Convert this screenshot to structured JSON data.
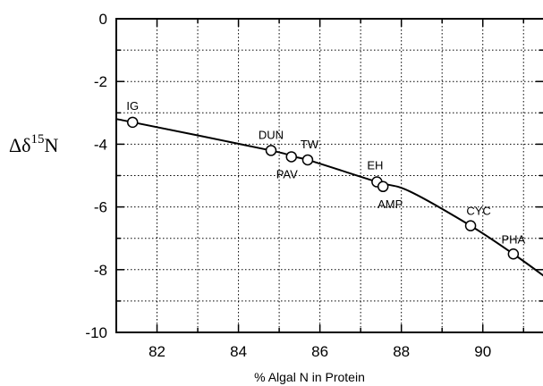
{
  "chart_data": {
    "type": "scatter",
    "xlabel": "% Algal N in Protein",
    "ylabel": {
      "prefix": "Δδ",
      "superscript": "15",
      "suffix": "N"
    },
    "xlim": [
      81,
      91.5
    ],
    "ylim": [
      -10,
      0
    ],
    "xticks": [
      82,
      84,
      86,
      88,
      90
    ],
    "yticks": [
      0,
      -2,
      -4,
      -6,
      -8,
      -10
    ],
    "grid": true,
    "points": [
      {
        "label": "IG",
        "x": 81.4,
        "y": -3.3
      },
      {
        "label": "DUN",
        "x": 84.8,
        "y": -4.2
      },
      {
        "label": "PAV",
        "x": 85.3,
        "y": -4.4
      },
      {
        "label": "TW",
        "x": 85.7,
        "y": -4.5
      },
      {
        "label": "EH",
        "x": 87.4,
        "y": -5.2
      },
      {
        "label": "AMP",
        "x": 87.55,
        "y": -5.35
      },
      {
        "label": "CYC",
        "x": 89.7,
        "y": -6.6
      },
      {
        "label": "PHA",
        "x": 90.75,
        "y": -7.5
      }
    ],
    "curve": [
      {
        "x": 81.0,
        "y": -3.2
      },
      {
        "x": 81.4,
        "y": -3.3
      },
      {
        "x": 84.8,
        "y": -4.2
      },
      {
        "x": 85.3,
        "y": -4.4
      },
      {
        "x": 85.7,
        "y": -4.5
      },
      {
        "x": 87.4,
        "y": -5.2
      },
      {
        "x": 88.2,
        "y": -5.5
      },
      {
        "x": 89.7,
        "y": -6.6
      },
      {
        "x": 90.75,
        "y": -7.5
      },
      {
        "x": 91.5,
        "y": -8.2
      }
    ]
  }
}
